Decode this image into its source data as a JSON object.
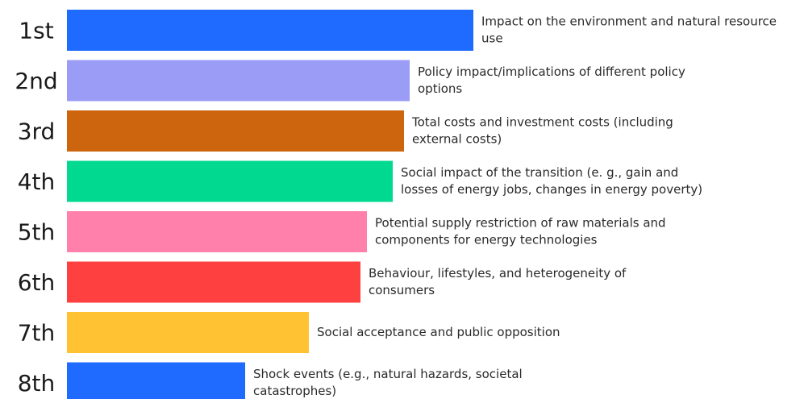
{
  "chart_data": {
    "type": "bar",
    "orientation": "horizontal",
    "categories": [
      "1st",
      "2nd",
      "3rd",
      "4th",
      "5th",
      "6th",
      "7th",
      "8th"
    ],
    "labels": [
      [
        "Impact on the environment and natural resource",
        "use"
      ],
      [
        "Policy impact/implications of different policy",
        "options"
      ],
      [
        "Total costs and investment costs (including",
        "external costs)"
      ],
      [
        "Social impact of the transition (e. g., gain and",
        "losses of energy jobs, changes in energy poverty)"
      ],
      [
        "Potential supply restriction of raw materials and",
        "components for energy technologies"
      ],
      [
        "Behaviour, lifestyles, and heterogeneity of",
        "consumers"
      ],
      [
        "Social acceptance and public opposition"
      ],
      [
        "Shock events (e.g., natural hazards, societal",
        "catastrophes)"
      ]
    ],
    "values": [
      504,
      425,
      418,
      404,
      372,
      364,
      300,
      221
    ],
    "colors": [
      "#1f6bff",
      "#9a9cf5",
      "#cc650e",
      "#00d98f",
      "#ff80aa",
      "#ff4040",
      "#ffc233",
      "#1f6bff"
    ]
  }
}
